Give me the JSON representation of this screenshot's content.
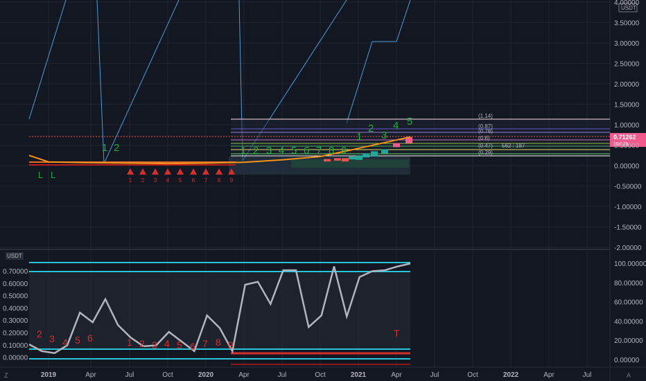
{
  "price_axis": {
    "currency": "USDT",
    "ticks": [
      "4.00000",
      "3.50000",
      "3.00000",
      "2.50000",
      "2.00000",
      "1.50000",
      "1.00000",
      "0.50000",
      "0.00000",
      "-0.50000",
      "-1.00000",
      "-1.50000",
      "-2.00000"
    ],
    "last_price": "0.71262",
    "countdown": "16d 2h"
  },
  "osc_axis": {
    "currency": "USDT",
    "left_ticks": [
      "0.70000",
      "0.60000",
      "0.50000",
      "0.40000",
      "0.30000",
      "0.20000",
      "0.10000",
      "0.00000"
    ],
    "right_ticks": [
      "100.00000",
      "80.00000",
      "60.00000",
      "40.00000",
      "20.00000",
      "0.00000"
    ]
  },
  "time_axis": [
    "2019",
    "Apr",
    "Jul",
    "Oct",
    "2020",
    "Apr",
    "Jul",
    "Oct",
    "2021",
    "Apr",
    "Jul",
    "Oct",
    "2022",
    "Apr",
    "Jul"
  ],
  "fib_labels": [
    "(1.14)",
    "(0.87)",
    "(0.78)",
    "(0.6)",
    "(0.47)",
    "(0.29)"
  ],
  "ratio_label": "562 : 187",
  "wave_numbers_top": [
    "1",
    "2",
    "1",
    "2",
    "3",
    "4",
    "5"
  ],
  "seq_numbers": [
    "1",
    "2",
    "3",
    "4",
    "5",
    "6",
    "7",
    "8",
    "9"
  ],
  "markers": {
    "low": "L",
    "top": "T",
    "tz": "Z",
    "auto": "A"
  },
  "colors": {
    "bg": "#131722",
    "up": "#26a69a",
    "down": "#ef5350",
    "count": "#22ab3f",
    "price_line": "#f7931a",
    "osc_line": "#b2b5be",
    "band": "#26c6da",
    "last_price": "#f05a8c"
  },
  "chart_data": {
    "type": "line",
    "title": "",
    "x": [
      "2019",
      "Apr",
      "Jul",
      "Oct",
      "2020",
      "Apr",
      "Jul",
      "Oct",
      "2021",
      "Apr"
    ],
    "series": [
      {
        "values": [
          0.09,
          0.07,
          0.06,
          0.05,
          0.06,
          0.08,
          0.14,
          0.22,
          0.42,
          0.7
        ]
      },
      {
        "values": [
          0.15,
          0.62,
          0.2,
          0.12,
          0.45,
          0.18,
          0.78,
          0.3,
          0.85,
          0.99
        ]
      }
    ],
    "ylim": [
      -2.0,
      4.0
    ]
  }
}
